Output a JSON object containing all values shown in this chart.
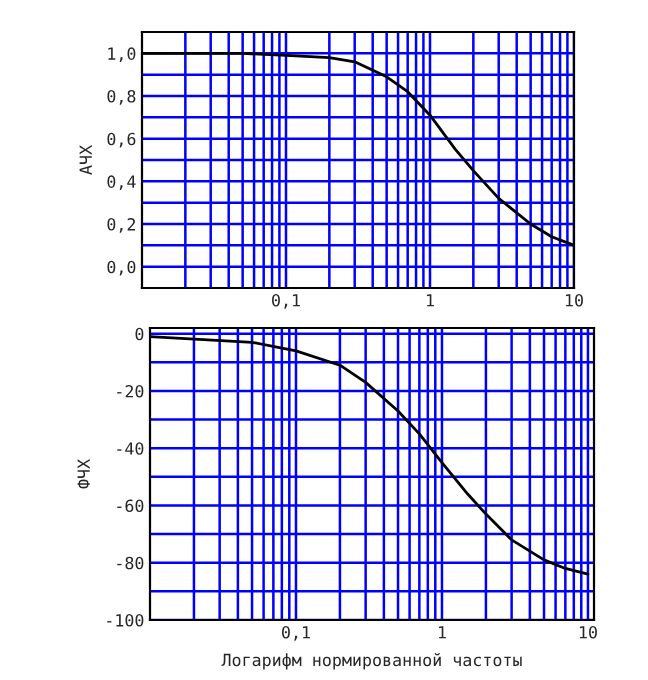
{
  "chart_data": [
    {
      "type": "line",
      "ylabel": "АЧХ",
      "x": [
        0.01,
        0.05,
        0.1,
        0.2,
        0.3,
        0.5,
        0.7,
        1,
        1.5,
        2,
        3,
        5,
        7,
        10
      ],
      "series": [
        {
          "color": "#000000",
          "values": [
            1.0,
            1.0,
            0.99,
            0.98,
            0.96,
            0.89,
            0.82,
            0.71,
            0.55,
            0.45,
            0.32,
            0.2,
            0.14,
            0.1
          ]
        }
      ],
      "log": "x",
      "grid": true,
      "marker": "none",
      "line_style": "solid",
      "xlim": [
        0.01,
        10
      ],
      "ylim": [
        -0.1,
        1.1
      ],
      "xticks": [
        {
          "value": 0.02,
          "label": null
        },
        {
          "value": 0.03,
          "label": null
        },
        {
          "value": 0.04,
          "label": null
        },
        {
          "value": 0.05,
          "label": null
        },
        {
          "value": 0.06,
          "label": null
        },
        {
          "value": 0.07,
          "label": null
        },
        {
          "value": 0.08,
          "label": null
        },
        {
          "value": 0.09,
          "label": null
        },
        {
          "value": 0.1,
          "label": "0,1"
        },
        {
          "value": 0.2,
          "label": null
        },
        {
          "value": 0.3,
          "label": null
        },
        {
          "value": 0.4,
          "label": null
        },
        {
          "value": 0.5,
          "label": null
        },
        {
          "value": 0.6,
          "label": null
        },
        {
          "value": 0.7,
          "label": null
        },
        {
          "value": 0.8,
          "label": null
        },
        {
          "value": 0.9,
          "label": null
        },
        {
          "value": 1,
          "label": "1"
        },
        {
          "value": 2,
          "label": null
        },
        {
          "value": 3,
          "label": null
        },
        {
          "value": 4,
          "label": null
        },
        {
          "value": 5,
          "label": null
        },
        {
          "value": 6,
          "label": null
        },
        {
          "value": 7,
          "label": null
        },
        {
          "value": 8,
          "label": null
        },
        {
          "value": 9,
          "label": null
        },
        {
          "value": 10,
          "label": "10"
        }
      ],
      "yticks": [
        {
          "value": 0,
          "label": "0,0"
        },
        {
          "value": 0.1,
          "label": null
        },
        {
          "value": 0.2,
          "label": "0,2"
        },
        {
          "value": 0.3,
          "label": null
        },
        {
          "value": 0.4,
          "label": "0,4"
        },
        {
          "value": 0.5,
          "label": null
        },
        {
          "value": 0.6,
          "label": "0,6"
        },
        {
          "value": 0.7,
          "label": null
        },
        {
          "value": 0.8,
          "label": "0,8"
        },
        {
          "value": 0.9,
          "label": null
        },
        {
          "value": 1.0,
          "label": "1,0"
        }
      ]
    },
    {
      "type": "line",
      "ylabel": "ФЧХ",
      "xlabel": "Логарифм нормированной частоты",
      "x": [
        0.01,
        0.05,
        0.1,
        0.2,
        0.3,
        0.5,
        0.7,
        1,
        1.5,
        2,
        3,
        5,
        7,
        10
      ],
      "series": [
        {
          "color": "#000000",
          "values": [
            -1,
            -3,
            -6,
            -11,
            -17,
            -27,
            -35,
            -45,
            -56,
            -63,
            -72,
            -79,
            -82,
            -84
          ]
        }
      ],
      "log": "x",
      "grid": true,
      "marker": "none",
      "line_style": "solid",
      "xlim": [
        0.01,
        11
      ],
      "ylim": [
        -100,
        2
      ],
      "xticks": [
        {
          "value": 0.02,
          "label": null
        },
        {
          "value": 0.03,
          "label": null
        },
        {
          "value": 0.04,
          "label": null
        },
        {
          "value": 0.05,
          "label": null
        },
        {
          "value": 0.06,
          "label": null
        },
        {
          "value": 0.07,
          "label": null
        },
        {
          "value": 0.08,
          "label": null
        },
        {
          "value": 0.09,
          "label": null
        },
        {
          "value": 0.1,
          "label": "0,1"
        },
        {
          "value": 0.2,
          "label": null
        },
        {
          "value": 0.3,
          "label": null
        },
        {
          "value": 0.4,
          "label": null
        },
        {
          "value": 0.5,
          "label": null
        },
        {
          "value": 0.6,
          "label": null
        },
        {
          "value": 0.7,
          "label": null
        },
        {
          "value": 0.8,
          "label": null
        },
        {
          "value": 0.9,
          "label": null
        },
        {
          "value": 1,
          "label": "1"
        },
        {
          "value": 2,
          "label": null
        },
        {
          "value": 3,
          "label": null
        },
        {
          "value": 4,
          "label": null
        },
        {
          "value": 5,
          "label": null
        },
        {
          "value": 6,
          "label": null
        },
        {
          "value": 7,
          "label": null
        },
        {
          "value": 8,
          "label": null
        },
        {
          "value": 9,
          "label": null
        },
        {
          "value": 10,
          "label": "10"
        }
      ],
      "yticks": [
        {
          "value": -100,
          "label": "-100"
        },
        {
          "value": -90,
          "label": null
        },
        {
          "value": -80,
          "label": "-80"
        },
        {
          "value": -70,
          "label": null
        },
        {
          "value": -60,
          "label": "-60"
        },
        {
          "value": -50,
          "label": null
        },
        {
          "value": -40,
          "label": "-40"
        },
        {
          "value": -30,
          "label": null
        },
        {
          "value": -20,
          "label": "-20"
        },
        {
          "value": -10,
          "label": null
        },
        {
          "value": 0,
          "label": "0"
        }
      ]
    }
  ]
}
